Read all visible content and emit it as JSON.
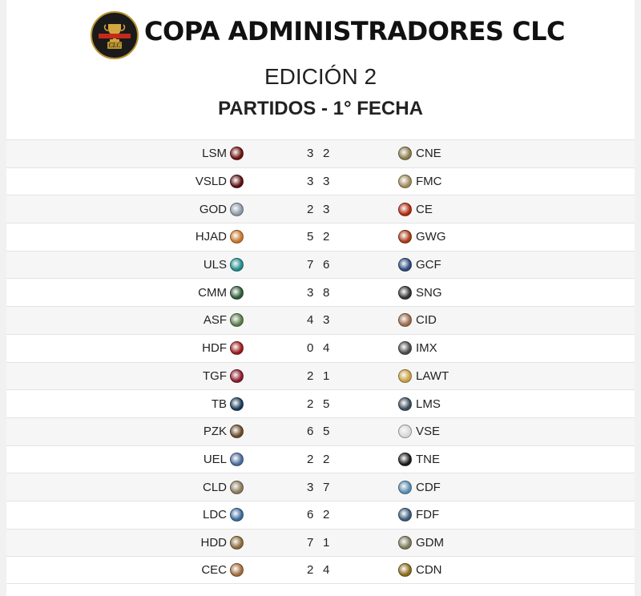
{
  "header": {
    "logo_text": "COPA ADMINISTRADORES CLC",
    "title": "COPA ADMINISTRADORES CLC",
    "subtitle": "EDICIÓN 2",
    "section": "PARTIDOS - 1° FECHA"
  },
  "matches": [
    {
      "home": "LSM",
      "home_score": "3",
      "away_score": "2",
      "away": "CNE",
      "home_color": "#6b1010",
      "away_color": "#8a7a4a"
    },
    {
      "home": "VSLD",
      "home_score": "3",
      "away_score": "3",
      "away": "FMC",
      "home_color": "#5a0e0e",
      "away_color": "#a08a5a"
    },
    {
      "home": "GOD",
      "home_score": "2",
      "away_score": "3",
      "away": "CE",
      "home_color": "#8c98a8",
      "away_color": "#b02a10"
    },
    {
      "home": "HJAD",
      "home_score": "5",
      "away_score": "2",
      "away": "GWG",
      "home_color": "#c8742a",
      "away_color": "#a83a14"
    },
    {
      "home": "ULS",
      "home_score": "7",
      "away_score": "6",
      "away": "GCF",
      "home_color": "#1f8a8a",
      "away_color": "#2a4a7a"
    },
    {
      "home": "CMM",
      "home_score": "3",
      "away_score": "8",
      "away": "SNG",
      "home_color": "#2e5a36",
      "away_color": "#333333"
    },
    {
      "home": "ASF",
      "home_score": "4",
      "away_score": "3",
      "away": "CID",
      "home_color": "#5a7a4a",
      "away_color": "#9a6a4a"
    },
    {
      "home": "HDF",
      "home_score": "0",
      "away_score": "4",
      "away": "IMX",
      "home_color": "#9a1a1a",
      "away_color": "#4a4a4a"
    },
    {
      "home": "TGF",
      "home_score": "2",
      "away_score": "1",
      "away": "LAWT",
      "home_color": "#8a1a2a",
      "away_color": "#c8a040"
    },
    {
      "home": "TB",
      "home_score": "2",
      "away_score": "5",
      "away": "LMS",
      "home_color": "#1a3a5a",
      "away_color": "#3a4a5a"
    },
    {
      "home": "PZK",
      "home_score": "6",
      "away_score": "5",
      "away": "VSE",
      "home_color": "#6a4a2a",
      "away_color": "#d8d8d8"
    },
    {
      "home": "UEL",
      "home_score": "2",
      "away_score": "2",
      "away": "TNE",
      "home_color": "#4a6a9a",
      "away_color": "#1a1a1a"
    },
    {
      "home": "CLD",
      "home_score": "3",
      "away_score": "7",
      "away": "CDF",
      "home_color": "#8a7a5a",
      "away_color": "#5a8ab0"
    },
    {
      "home": "LDC",
      "home_score": "6",
      "away_score": "2",
      "away": "FDF",
      "home_color": "#3a6a9a",
      "away_color": "#3a5a7a"
    },
    {
      "home": "HDD",
      "home_score": "7",
      "away_score": "1",
      "away": "GDM",
      "home_color": "#8a6a3a",
      "away_color": "#7a7a5a"
    },
    {
      "home": "CEC",
      "home_score": "2",
      "away_score": "4",
      "away": "CDN",
      "home_color": "#a06a3a",
      "away_color": "#8a6a1a"
    }
  ]
}
